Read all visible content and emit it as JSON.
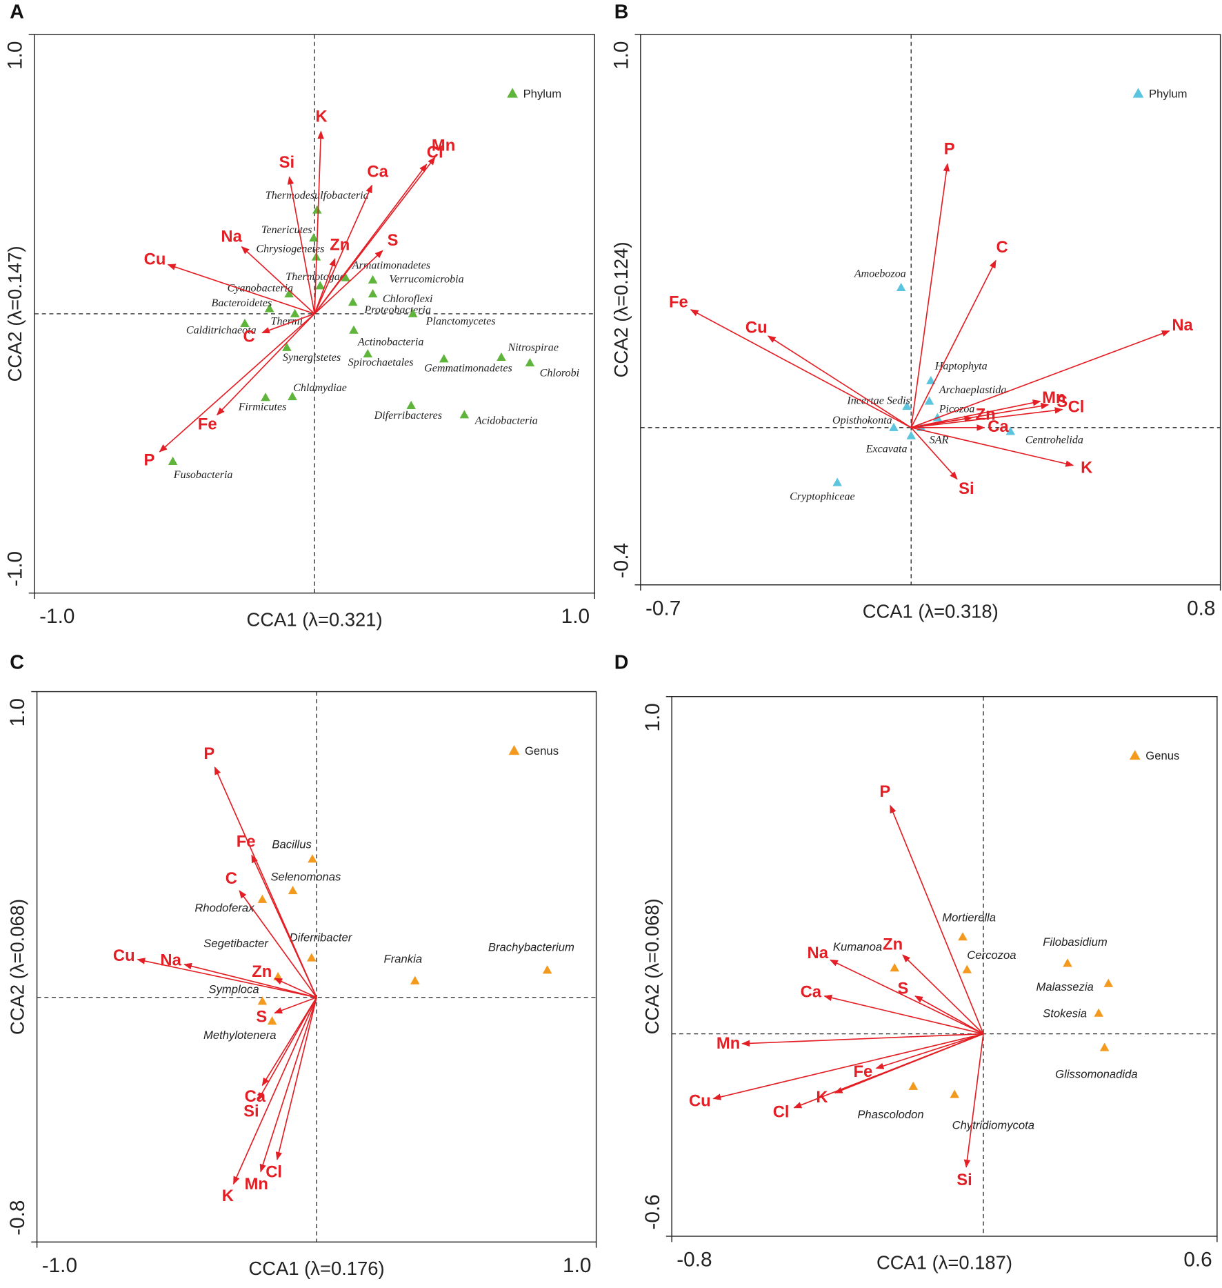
{
  "chart_data": [
    {
      "type": "scatter",
      "panel": "A",
      "x_label": "CCA1 (λ=0.321)",
      "y_label": "CCA2 (λ=0.147)",
      "xlim": [
        -1,
        1
      ],
      "ylim": [
        -1,
        1
      ],
      "xticks": [
        {
          "value": -1,
          "label": "-1.0"
        },
        {
          "value": 1,
          "label": "1.0"
        }
      ],
      "yticks": [
        {
          "value": -1,
          "label": "-1.0"
        },
        {
          "value": 1,
          "label": "1.0"
        }
      ],
      "legend": "upper right",
      "series": [
        {
          "name": "Phylum",
          "marker": "triangle",
          "color": "#5fb43c",
          "labels": [
            "Thermodesulfobacteria",
            "Tenericutes",
            "Chrysiogenetes",
            "Thermotogae",
            "Armatimonadetes",
            "Verrucomicrobia",
            "Chloroflexi",
            "Proteobacteria",
            "Planctomycetes",
            "Cyanobacteria",
            "Bacteroidetes",
            "Thermi",
            "Calditrichaeota",
            "Synergistetes",
            "Actinobacteria",
            "Spirochaetales",
            "Gemmatimonadetes",
            "Nitrospirae",
            "Chlorobi",
            "Chlamydiae",
            "Firmicutes",
            "Diferribacteres",
            "Acidobacteria",
            "Fusobacteria"
          ],
          "x": [
            0.009,
            -0.003,
            0.006,
            0.02,
            0.111,
            0.208,
            0.208,
            0.137,
            0.351,
            -0.091,
            -0.161,
            -0.07,
            -0.249,
            -0.099,
            0.14,
            0.19,
            0.462,
            0.667,
            0.769,
            -0.079,
            -0.175,
            0.345,
            0.535,
            -0.506
          ],
          "values": [
            0.371,
            0.271,
            0.203,
            0.1,
            0.129,
            0.121,
            0.071,
            0.041,
            0.0,
            0.071,
            0.018,
            0.0,
            -0.035,
            -0.121,
            -0.059,
            -0.144,
            -0.162,
            -0.156,
            -0.176,
            -0.297,
            -0.3,
            -0.329,
            -0.362,
            -0.529
          ]
        },
        {
          "marker": "arrow",
          "color": "#e31e24",
          "labels": [
            "K",
            "Mn",
            "Cl",
            "Si",
            "Ca",
            "Zn",
            "S",
            "Na",
            "Cu",
            "C",
            "Fe",
            "P"
          ],
          "x": [
            0.023,
            0.43,
            0.4,
            -0.09,
            0.205,
            0.073,
            0.243,
            -0.26,
            -0.523,
            -0.187,
            -0.348,
            -0.553
          ],
          "values": [
            0.653,
            0.56,
            0.535,
            0.49,
            0.46,
            0.197,
            0.226,
            0.24,
            0.176,
            -0.068,
            -0.362,
            -0.494
          ]
        }
      ]
    },
    {
      "type": "scatter",
      "panel": "B",
      "x_label": "CCA1 (λ=0.318)",
      "y_label": "CCA2 (λ=0.124)",
      "xlim": [
        -0.7,
        0.8
      ],
      "ylim": [
        -0.4,
        1
      ],
      "xticks": [
        -0.7,
        0.8
      ],
      "yticks": [
        -0.4,
        {
          "value": 1,
          "label": "1.0"
        }
      ],
      "legend": "upper right",
      "series": [
        {
          "name": "Phylum",
          "marker": "triangle",
          "color": "#5bc4de",
          "labels": [
            "Amoebozoa",
            "Haptophyta",
            "Archaeplastida",
            "Incertae Sedis",
            "Picozoa",
            "Opisthokonta",
            "SAR",
            "Excavata",
            "Centrohelida",
            "Cryptophiceae"
          ],
          "x": [
            -0.026,
            0.051,
            0.047,
            -0.011,
            0.068,
            -0.045,
            0.026,
            0.0,
            0.257,
            -0.191
          ],
          "values": [
            0.356,
            0.119,
            0.067,
            0.054,
            0.025,
            0.0,
            0.0,
            -0.021,
            -0.01,
            -0.14
          ]
        },
        {
          "marker": "arrow",
          "color": "#e31e24",
          "labels": [
            "P",
            "C",
            "Fe",
            "Cu",
            "Na",
            "Mn",
            "S",
            "Cl",
            "Zn",
            "Ca",
            "K",
            "Si"
          ],
          "x": [
            0.094,
            0.219,
            -0.57,
            -0.37,
            0.668,
            0.334,
            0.355,
            0.391,
            0.157,
            0.189,
            0.419,
            0.119
          ],
          "values": [
            0.671,
            0.425,
            0.3,
            0.233,
            0.246,
            0.067,
            0.058,
            0.046,
            0.025,
            0.0,
            -0.096,
            -0.131
          ]
        }
      ]
    },
    {
      "type": "scatter",
      "panel": "C",
      "x_label": "CCA1 (λ=0.176)",
      "y_label": "CCA2 (λ=0.068)",
      "xlim": [
        -1,
        1
      ],
      "ylim": [
        -0.8,
        1
      ],
      "xticks": [
        {
          "value": -1,
          "label": "-1.0"
        },
        {
          "value": 1,
          "label": "1.0"
        }
      ],
      "yticks": [
        -0.8,
        {
          "value": 1,
          "label": "1.0"
        }
      ],
      "legend": "upper right",
      "series": [
        {
          "name": "Genus",
          "marker": "triangle",
          "color": "#f39a1e",
          "labels": [
            "Bacillus",
            "Selenomonas",
            "Rhodoferax",
            "Diferribacter",
            "Segetibacter",
            "Frankia",
            "Brachybacterium",
            "Symploca",
            "Methylotenera"
          ],
          "x": [
            -0.015,
            -0.085,
            -0.194,
            -0.018,
            -0.138,
            0.352,
            0.825,
            -0.194,
            -0.159
          ],
          "values": [
            0.452,
            0.349,
            0.32,
            0.129,
            0.067,
            0.054,
            0.089,
            -0.013,
            -0.078
          ]
        },
        {
          "marker": "arrow",
          "color": "#e31e24",
          "labels": [
            "P",
            "Fe",
            "C",
            "Cu",
            "Na",
            "Zn",
            "S",
            "Ca",
            "Si",
            "Mn",
            "Cl",
            "K"
          ],
          "x": [
            -0.364,
            -0.232,
            -0.276,
            -0.64,
            -0.473,
            -0.15,
            -0.15,
            -0.194,
            -0.209,
            -0.2,
            -0.141,
            -0.297
          ],
          "values": [
            0.753,
            0.465,
            0.349,
            0.124,
            0.108,
            0.062,
            -0.051,
            -0.288,
            -0.336,
            -0.57,
            -0.53,
            -0.61
          ]
        }
      ]
    },
    {
      "type": "scatter",
      "panel": "D",
      "x_label": "CCA1 (λ=0.187)",
      "y_label": "CCA2 (λ=0.068)",
      "xlim": [
        -0.8,
        0.6
      ],
      "ylim": [
        -0.6,
        1
      ],
      "xticks": [
        -0.8,
        0.6
      ],
      "yticks": [
        -0.6,
        {
          "value": 1,
          "label": "1.0"
        }
      ],
      "legend": "upper right",
      "series": [
        {
          "name": "Genus",
          "marker": "triangle",
          "color": "#f39a1e",
          "labels": [
            "Mortierella",
            "Kumanoa",
            "Cercozoa",
            "Filobasidium",
            "Malassezia",
            "Stokesia",
            "Glissomonadida",
            "Phascolodon",
            "Chytridiomycota"
          ],
          "x": [
            -0.053,
            -0.228,
            -0.042,
            0.216,
            0.321,
            0.296,
            0.311,
            -0.18,
            -0.074
          ],
          "values": [
            0.287,
            0.195,
            0.19,
            0.209,
            0.149,
            0.061,
            -0.041,
            -0.156,
            -0.18
          ]
        },
        {
          "marker": "arrow",
          "color": "#e31e24",
          "labels": [
            "P",
            "Na",
            "Zn",
            "Ca",
            "S",
            "Mn",
            "Cu",
            "Cl",
            "K",
            "Fe",
            "Si"
          ],
          "x": [
            -0.239,
            -0.393,
            -0.207,
            -0.408,
            -0.175,
            -0.619,
            -0.693,
            -0.486,
            -0.381,
            -0.275,
            -0.044
          ],
          "values": [
            0.677,
            0.219,
            0.234,
            0.112,
            0.112,
            -0.029,
            -0.192,
            -0.219,
            -0.175,
            -0.102,
            -0.395
          ]
        }
      ]
    }
  ]
}
